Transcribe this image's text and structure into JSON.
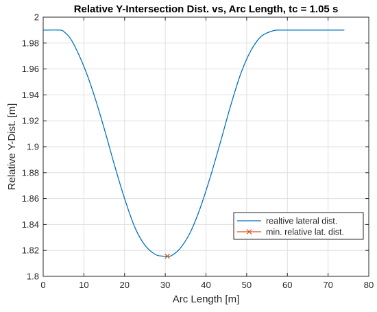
{
  "chart_data": {
    "type": "line",
    "title": "Relative Y-Intersection Dist. vs, Arc Length, tc = 1.05 s",
    "xlabel": "Arc Length [m]",
    "ylabel": "Relative Y-Dist. [m]",
    "xlim": [
      0,
      80
    ],
    "ylim": [
      1.8,
      2.0
    ],
    "x_ticks": [
      0,
      10,
      20,
      30,
      40,
      50,
      60,
      70,
      80
    ],
    "x_tick_labels": [
      "0",
      "10",
      "20",
      "30",
      "40",
      "50",
      "60",
      "70",
      "80"
    ],
    "y_ticks": [
      1.8,
      1.82,
      1.84,
      1.86,
      1.88,
      1.9,
      1.92,
      1.94,
      1.96,
      1.98,
      2.0
    ],
    "y_tick_labels": [
      "1.8",
      "1.82",
      "1.84",
      "1.86",
      "1.88",
      "1.9",
      "1.92",
      "1.94",
      "1.96",
      "1.98",
      "2"
    ],
    "grid": true,
    "legend_location": "lower-right",
    "series": [
      {
        "name": "realtive lateral dist.",
        "style": "line",
        "color": "#0072BD",
        "x": [
          0,
          4,
          5,
          7,
          10,
          12.5,
          15,
          17.5,
          20,
          22.5,
          25,
          27.5,
          29.5,
          30.5,
          31.5,
          33.5,
          36,
          38.5,
          41,
          43.5,
          46,
          48.5,
          51,
          53.5,
          56,
          57.5,
          59,
          74
        ],
        "y": [
          1.99,
          1.99,
          1.989,
          1.982,
          1.962,
          1.94,
          1.914,
          1.886,
          1.86,
          1.838,
          1.824,
          1.817,
          1.8155,
          1.8155,
          1.816,
          1.821,
          1.833,
          1.852,
          1.876,
          1.903,
          1.931,
          1.956,
          1.974,
          1.985,
          1.989,
          1.99,
          1.99,
          1.99
        ]
      },
      {
        "name": "min. relative lat. dist.",
        "style": "marker-x",
        "color": "#D95319",
        "x": [
          30.5
        ],
        "y": [
          1.8155
        ]
      }
    ]
  }
}
